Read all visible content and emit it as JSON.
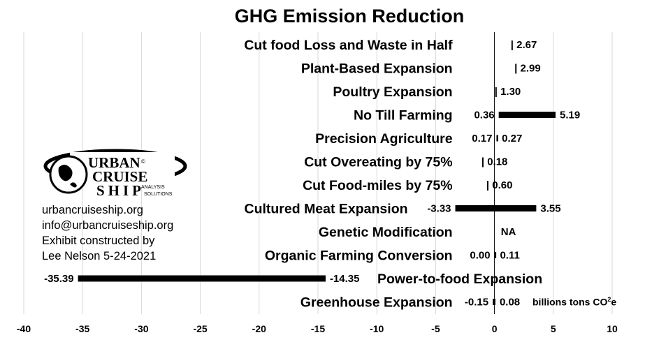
{
  "chart_data": {
    "type": "bar",
    "orientation": "horizontal-range",
    "title": "GHG Emission Reduction",
    "xlim": [
      -40,
      10
    ],
    "xticks": [
      -40,
      -35,
      -30,
      -25,
      -20,
      -15,
      -10,
      -5,
      0,
      5,
      10
    ],
    "grid": true,
    "unit_label": "billions tons CO",
    "unit_sup": "2",
    "unit_suffix": "e",
    "categories": [
      {
        "name": "Cut food Loss and Waste in Half",
        "low": null,
        "high": 2.67,
        "high_label": "| 2.67"
      },
      {
        "name": "Plant-Based Expansion",
        "low": null,
        "high": 2.99,
        "high_label": "| 2.99"
      },
      {
        "name": "Poultry Expansion",
        "low": null,
        "high": 1.3,
        "high_label": "| 1.30"
      },
      {
        "name": "No Till Farming",
        "low": 0.36,
        "high": 5.19,
        "low_label": "0.36",
        "high_label": "5.19"
      },
      {
        "name": "Precision Agriculture",
        "low": 0.17,
        "high": 0.27,
        "low_label": "0.17",
        "high_label": "0.27"
      },
      {
        "name": "Cut Overeating by 75%",
        "low": null,
        "high": 0.18,
        "high_label": "| 0.18"
      },
      {
        "name": "Cut Food-miles by 75%",
        "low": null,
        "high": 0.6,
        "high_label": "| 0.60"
      },
      {
        "name": "Cultured Meat Expansion",
        "low": -3.33,
        "high": 3.55,
        "low_label": "-3.33",
        "high_label": "3.55"
      },
      {
        "name": "Genetic Modification",
        "low": null,
        "high": null,
        "high_label": "NA"
      },
      {
        "name": "Organic Farming Conversion",
        "low": 0.0,
        "high": 0.11,
        "low_label": "0.00",
        "high_label": "0.11"
      },
      {
        "name": "Power-to-food Expansion",
        "low": -35.39,
        "high": -14.35,
        "low_label": "-35.39",
        "high_label": "-14.35"
      },
      {
        "name": "Greenhouse Expansion",
        "low": -0.15,
        "high": 0.08,
        "low_label": "-0.15",
        "high_label": "0.08"
      }
    ]
  },
  "logo": {
    "line1": "URBAN",
    "line2": "CRUISE",
    "line3": "SHIP",
    "sub1": "ANALYSIS",
    "sub2": "SOLUTIONS",
    "mark": "©"
  },
  "contact": {
    "website": "urbancruiseship.org",
    "email": "info@urbancruiseship.org",
    "credit1": "Exhibit constructed by",
    "credit2": "Lee Nelson 5-24-2021"
  }
}
